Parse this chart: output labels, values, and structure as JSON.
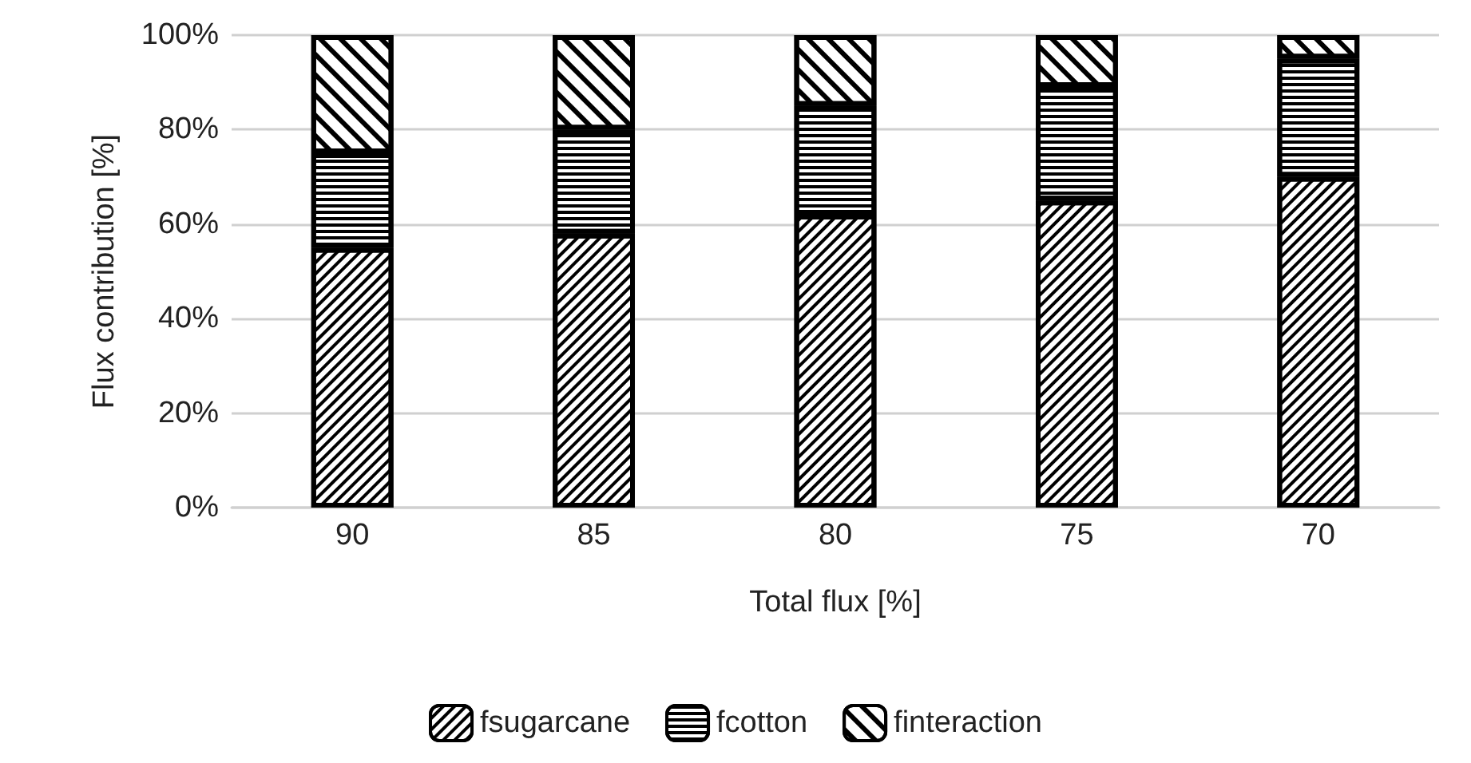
{
  "chart_data": {
    "type": "bar",
    "stacked": true,
    "xlabel": "Total flux [%]",
    "ylabel": "Flux contribution [%]",
    "categories": [
      "90",
      "85",
      "80",
      "75",
      "70"
    ],
    "series": [
      {
        "name": "fsugarcane",
        "color": "#ffffff",
        "values": [
          55,
          58,
          62,
          65,
          70
        ]
      },
      {
        "name": "fcotton",
        "color": "#ffffff",
        "values": [
          20,
          22,
          23,
          24,
          25
        ]
      },
      {
        "name": "finteraction",
        "color": "#ffffff",
        "values": [
          25,
          20,
          15,
          11,
          5
        ]
      }
    ],
    "ylim": [
      0,
      100
    ],
    "yticks": [
      {
        "value": 0,
        "label": "0%"
      },
      {
        "value": 20,
        "label": "20%"
      },
      {
        "value": 40,
        "label": "40%"
      },
      {
        "value": 60,
        "label": "60%"
      },
      {
        "value": 80,
        "label": "80%"
      },
      {
        "value": 100,
        "label": "100%"
      }
    ],
    "grid": "y",
    "legend": "bottom"
  }
}
